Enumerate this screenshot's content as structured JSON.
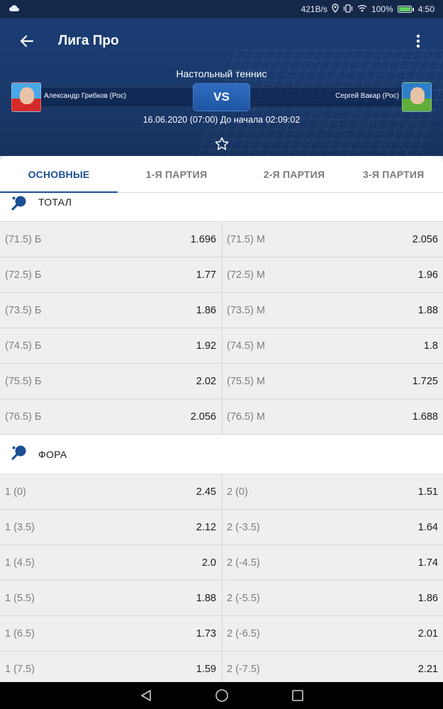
{
  "status_bar": {
    "net_speed": "421B/s",
    "battery": "100%",
    "battery_level": 1.0,
    "time": "4:50",
    "icons": [
      "cloud-icon",
      "location-icon",
      "vibrate-icon",
      "wifi-icon",
      "battery-icon"
    ]
  },
  "header": {
    "title": "Лига Про",
    "sport": "Настольный теннис",
    "player_left": "Александр Грибков (Рос)",
    "player_right": "Сергей Вакар (Рос)",
    "vs_label": "VS",
    "match_time": "16.06.2020 (07:00)  До начала 02:09:02"
  },
  "tabs": [
    {
      "label": "ОСНОВНЫЕ",
      "active": true
    },
    {
      "label": "1-Я ПАРТИЯ",
      "active": false
    },
    {
      "label": "2-Я ПАРТИЯ",
      "active": false
    },
    {
      "label": "3-Я ПАРТИЯ",
      "active": false
    }
  ],
  "sections": {
    "total": {
      "title": "ТОТАЛ",
      "rows": [
        {
          "left_label": "(71.5) Б",
          "left_value": "1.696",
          "right_label": "(71.5) М",
          "right_value": "2.056"
        },
        {
          "left_label": "(72.5) Б",
          "left_value": "1.77",
          "right_label": "(72.5) М",
          "right_value": "1.96"
        },
        {
          "left_label": "(73.5) Б",
          "left_value": "1.86",
          "right_label": "(73.5) М",
          "right_value": "1.88"
        },
        {
          "left_label": "(74.5) Б",
          "left_value": "1.92",
          "right_label": "(74.5) М",
          "right_value": "1.8"
        },
        {
          "left_label": "(75.5) Б",
          "left_value": "2.02",
          "right_label": "(75.5) М",
          "right_value": "1.725"
        },
        {
          "left_label": "(76.5) Б",
          "left_value": "2.056",
          "right_label": "(76.5) М",
          "right_value": "1.688"
        }
      ]
    },
    "handicap": {
      "title": "ФОРА",
      "rows": [
        {
          "left_label": "1 (0)",
          "left_value": "2.45",
          "right_label": "2 (0)",
          "right_value": "1.51"
        },
        {
          "left_label": "1 (3.5)",
          "left_value": "2.12",
          "right_label": "2 (-3.5)",
          "right_value": "1.64"
        },
        {
          "left_label": "1 (4.5)",
          "left_value": "2.0",
          "right_label": "2 (-4.5)",
          "right_value": "1.74"
        },
        {
          "left_label": "1 (5.5)",
          "left_value": "1.88",
          "right_label": "2 (-5.5)",
          "right_value": "1.86"
        },
        {
          "left_label": "1 (6.5)",
          "left_value": "1.73",
          "right_label": "2 (-6.5)",
          "right_value": "2.01"
        },
        {
          "left_label": "1 (7.5)",
          "left_value": "1.59",
          "right_label": "2 (-7.5)",
          "right_value": "2.21"
        }
      ]
    }
  },
  "colors": {
    "header_bg": "#1a3a6d",
    "accent": "#1d4f95",
    "status_bar": "#14284a",
    "row_bg": "#efefef"
  }
}
